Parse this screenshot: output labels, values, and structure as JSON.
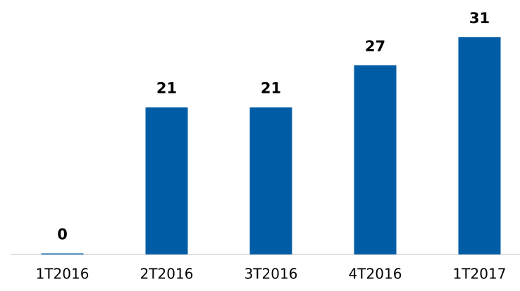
{
  "chart_data": {
    "type": "bar",
    "categories": [
      "1T2016",
      "2T2016",
      "3T2016",
      "4T2016",
      "1T2017"
    ],
    "values": [
      0,
      21,
      21,
      27,
      31
    ],
    "color": "#005da5"
  }
}
